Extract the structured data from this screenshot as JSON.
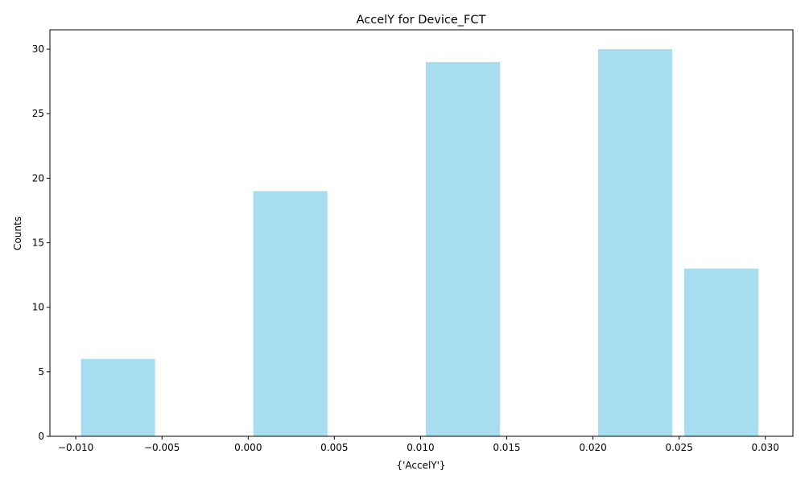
{
  "chart_data": {
    "type": "bar",
    "title": "AccelY for Device_FCT",
    "xlabel": "{'AccelY'}",
    "ylabel": "Counts",
    "bars": [
      {
        "x_start": -0.0097,
        "x_end": -0.0054,
        "value": 6
      },
      {
        "x_start": 0.0003,
        "x_end": 0.0046,
        "value": 19
      },
      {
        "x_start": 0.0103,
        "x_end": 0.0146,
        "value": 29
      },
      {
        "x_start": 0.0203,
        "x_end": 0.0246,
        "value": 30
      },
      {
        "x_start": 0.0253,
        "x_end": 0.0296,
        "value": 13
      }
    ],
    "xlim": [
      -0.0115,
      0.0316
    ],
    "ylim": [
      0,
      31.5
    ],
    "x_ticks": [
      -0.01,
      -0.005,
      0.0,
      0.005,
      0.01,
      0.015,
      0.02,
      0.025,
      0.03
    ],
    "x_tick_labels": [
      "−0.010",
      "−0.005",
      "0.000",
      "0.005",
      "0.010",
      "0.015",
      "0.020",
      "0.025",
      "0.030"
    ],
    "y_ticks": [
      0,
      5,
      10,
      15,
      20,
      25,
      30
    ],
    "y_tick_labels": [
      "0",
      "5",
      "10",
      "15",
      "20",
      "25",
      "30"
    ],
    "grid": false,
    "bar_color": "#a8dcef",
    "axis_color": "#000000"
  }
}
